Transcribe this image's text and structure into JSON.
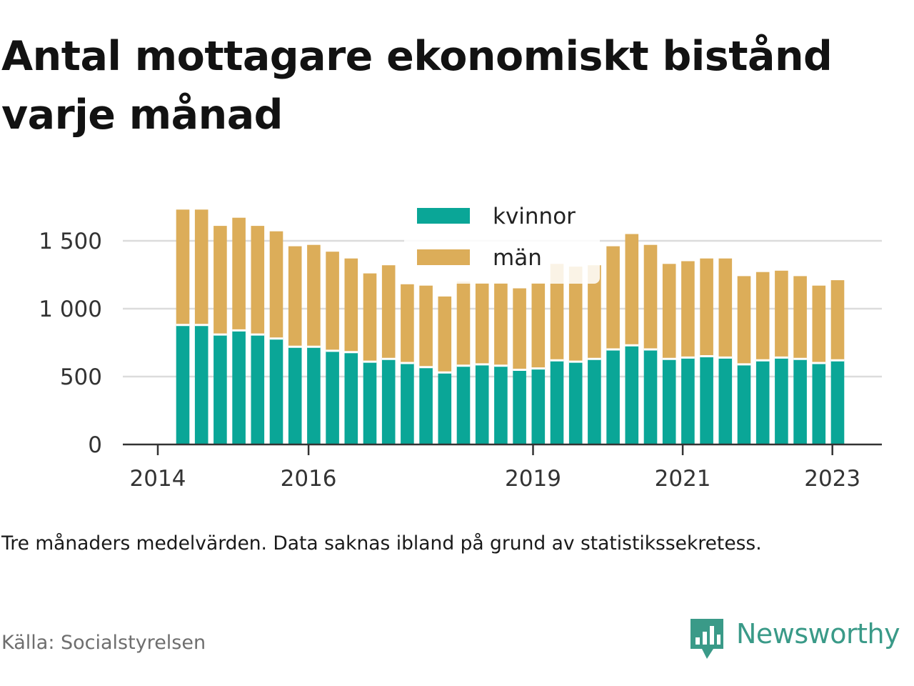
{
  "title": "Antal mottagare ekonomiskt bistånd varje månad",
  "note": "Tre månaders medelvärden. Data saknas ibland på grund av statistikssekretess.",
  "source": "Källa: Socialstyrelsen",
  "brand": "Newsworthy",
  "colors": {
    "kvinnor": "#0aa697",
    "man": "#dcad59",
    "grid": "#dcdcdc",
    "axis": "#333333",
    "brand": "#3a9a88"
  },
  "chart_data": {
    "type": "bar",
    "stacked": true,
    "legend_position": "top-center",
    "grid": true,
    "ylim": [
      0,
      1800
    ],
    "y_ticks": [
      {
        "value": 0,
        "label": "0"
      },
      {
        "value": 500,
        "label": "500"
      },
      {
        "value": 1000,
        "label": "1 000"
      },
      {
        "value": 1500,
        "label": "1 500"
      }
    ],
    "x_ticks": [
      {
        "index": -1,
        "label": "2014"
      },
      {
        "index": 7,
        "label": "2016"
      },
      {
        "index": 19,
        "label": "2019"
      },
      {
        "index": 27,
        "label": "2021"
      },
      {
        "index": 35,
        "label": "2023"
      }
    ],
    "series": [
      {
        "name": "kvinnor",
        "color": "#0aa697",
        "values": [
          880,
          880,
          810,
          840,
          810,
          780,
          720,
          720,
          690,
          680,
          610,
          630,
          600,
          570,
          530,
          580,
          590,
          580,
          550,
          560,
          620,
          610,
          630,
          700,
          730,
          700,
          630,
          640,
          650,
          640,
          590,
          620,
          640,
          630,
          600,
          620
        ]
      },
      {
        "name": "män",
        "color": "#dcad59",
        "values": [
          850,
          850,
          800,
          830,
          800,
          790,
          740,
          750,
          730,
          690,
          650,
          690,
          580,
          600,
          560,
          620,
          600,
          610,
          600,
          630,
          710,
          700,
          690,
          760,
          820,
          770,
          700,
          710,
          720,
          730,
          650,
          650,
          640,
          610,
          570,
          590
        ]
      }
    ]
  }
}
